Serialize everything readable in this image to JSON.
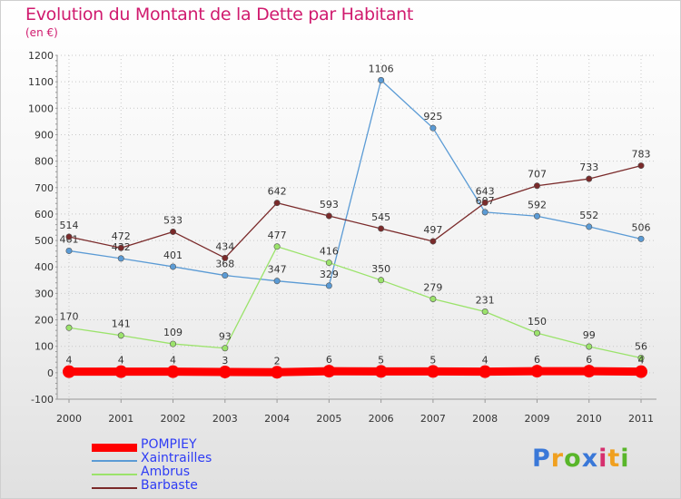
{
  "title": "Evolution du Montant de la Dette par Habitant",
  "subtitle": "(en €)",
  "brand": "Proxiti",
  "brand_colors": [
    "#3a78d8",
    "#f0a020",
    "#59b62a",
    "#3a78d8",
    "#d6306e",
    "#f0a020",
    "#59b62a"
  ],
  "chart_data": {
    "type": "line",
    "x": [
      "2000",
      "2001",
      "2002",
      "2003",
      "2004",
      "2005",
      "2006",
      "2007",
      "2008",
      "2009",
      "2010",
      "2011"
    ],
    "ylim": [
      -100,
      1200
    ],
    "yticks": [
      -100,
      0,
      100,
      200,
      300,
      400,
      500,
      600,
      700,
      800,
      900,
      1000,
      1100,
      1200
    ],
    "grid": true,
    "legend_position": "bottom-left",
    "series": [
      {
        "name": "POMPIEY",
        "color": "#ff0000",
        "values": [
          4,
          4,
          4,
          3,
          2,
          6,
          5,
          5,
          4,
          6,
          6,
          4
        ],
        "labels": [
          "4",
          "4",
          "4",
          "3",
          "2",
          "6",
          "5",
          "5",
          "4",
          "6",
          "6",
          "4"
        ]
      },
      {
        "name": "Xaintrailles",
        "color": "#5b9bd5",
        "values": [
          461,
          432,
          401,
          368,
          347,
          329,
          1106,
          925,
          607,
          592,
          552,
          506
        ],
        "labels": [
          "461",
          "432",
          "401",
          "368",
          "347",
          "329",
          "1106",
          "925",
          "607",
          "592",
          "552",
          "506"
        ]
      },
      {
        "name": "Ambrus",
        "color": "#9be36b",
        "values": [
          170,
          141,
          109,
          93,
          477,
          416,
          350,
          279,
          231,
          150,
          99,
          56
        ],
        "labels": [
          "170",
          "141",
          "109",
          "93",
          "477",
          "416",
          "350",
          "279",
          "231",
          "150",
          "99",
          "56"
        ]
      },
      {
        "name": "Barbaste",
        "color": "#7a2a2a",
        "values": [
          514,
          472,
          533,
          434,
          642,
          593,
          545,
          497,
          643,
          707,
          733,
          783
        ],
        "labels": [
          "514",
          "472",
          "533",
          "434",
          "642",
          "593",
          "545",
          "497",
          "643",
          "707",
          "733",
          "783"
        ]
      }
    ]
  }
}
